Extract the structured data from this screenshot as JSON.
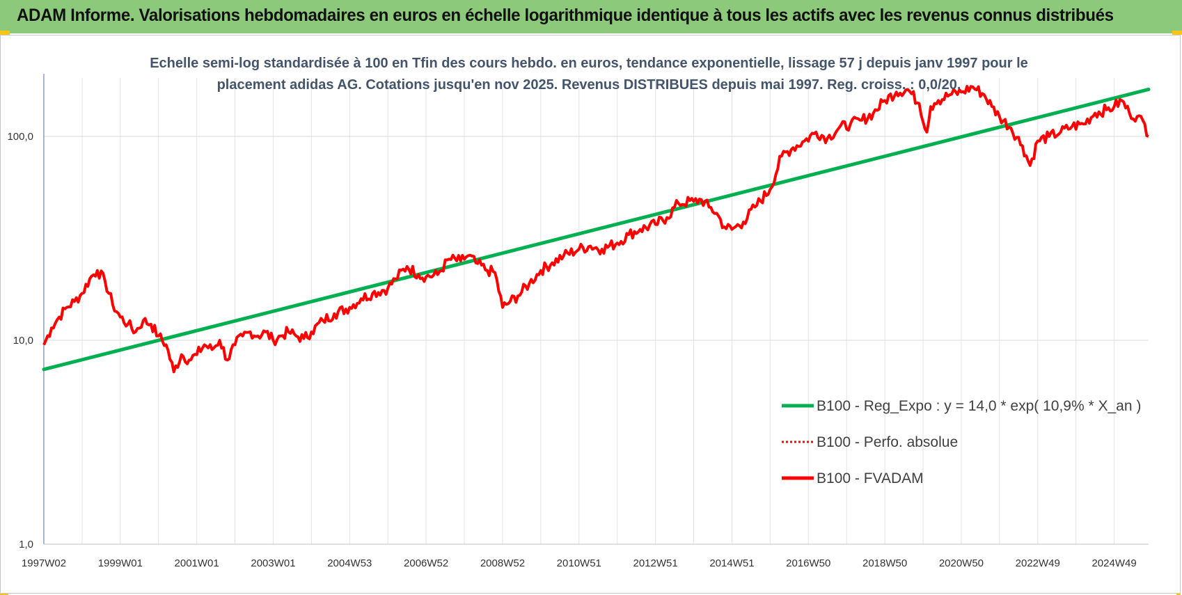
{
  "banner": {
    "title": "ADAM Informe. Valorisations hebdomadaires en euros en échelle logarithmique identique à tous les actifs avec les revenus connus distribués",
    "color": "#8dc97a"
  },
  "chart_data": {
    "type": "line",
    "scale": "log",
    "subtitle_lines": [
      "Echelle semi-log standardisée à 100 en Tfin des cours hebdo. en euros, tendance exponentielle, lissage 57 j depuis janv 1997 pour le",
      "placement adidas AG. Cotations jusqu'en nov 2025. Revenus DISTRIBUES depuis mai 1997. Reg. croiss. : 0,0/20."
    ],
    "x_tick_labels": [
      "1997W02",
      "1999W01",
      "2001W01",
      "2003W01",
      "2004W53",
      "2006W52",
      "2008W52",
      "2010W51",
      "2012W51",
      "2014W51",
      "2016W50",
      "2018W50",
      "2020W50",
      "2022W49",
      "2024W49"
    ],
    "x_tick_years": [
      1997.0,
      1999.0,
      2001.0,
      2003.0,
      2005.0,
      2007.0,
      2009.0,
      2011.0,
      2013.0,
      2015.0,
      2017.0,
      2019.0,
      2021.0,
      2023.0,
      2025.0
    ],
    "x_range_years": [
      1997.0,
      2025.9
    ],
    "y_ticks": [
      1,
      10,
      100
    ],
    "y_tick_labels": [
      "1,0",
      "10,0",
      "100,0"
    ],
    "ylim": [
      1,
      210
    ],
    "grid": true,
    "legend_position": "bottom-right",
    "series": [
      {
        "name": "B100 - Reg_Expo : y = 14,0 * exp( 10,9% *  X_an )",
        "color": "#00b050",
        "style": "solid",
        "x": [
          1997.0,
          2025.9
        ],
        "values": [
          7.2,
          170
        ]
      },
      {
        "name": "B100 - Perfo. absolue",
        "color": "#ff0000",
        "style": "dotted",
        "x": [],
        "values": []
      },
      {
        "name": "B100 - FVADAM",
        "color": "#ff0000",
        "style": "solid",
        "x": [
          1997.0,
          1997.2,
          1997.4,
          1997.6,
          1997.8,
          1998.0,
          1998.2,
          1998.4,
          1998.6,
          1998.8,
          1999.0,
          1999.2,
          1999.4,
          1999.6,
          1999.8,
          2000.0,
          2000.2,
          2000.4,
          2000.6,
          2000.8,
          2001.0,
          2001.2,
          2001.4,
          2001.6,
          2001.8,
          2002.0,
          2002.2,
          2002.4,
          2002.6,
          2002.8,
          2003.0,
          2003.2,
          2003.4,
          2003.6,
          2003.8,
          2004.0,
          2004.3,
          2004.6,
          2005.0,
          2005.3,
          2005.6,
          2006.0,
          2006.2,
          2006.5,
          2006.8,
          2007.0,
          2007.3,
          2007.6,
          2007.9,
          2008.1,
          2008.3,
          2008.6,
          2008.8,
          2009.0,
          2009.2,
          2009.4,
          2009.7,
          2010.0,
          2010.3,
          2010.6,
          2011.0,
          2011.3,
          2011.6,
          2012.0,
          2012.3,
          2012.6,
          2013.0,
          2013.3,
          2013.6,
          2014.0,
          2014.2,
          2014.4,
          2014.6,
          2014.8,
          2015.0,
          2015.3,
          2015.6,
          2016.0,
          2016.3,
          2016.6,
          2016.9,
          2017.2,
          2017.5,
          2017.8,
          2018.1,
          2018.4,
          2018.7,
          2019.0,
          2019.3,
          2019.6,
          2019.9,
          2020.1,
          2020.2,
          2020.3,
          2020.4,
          2020.7,
          2021.0,
          2021.3,
          2021.6,
          2021.8,
          2022.0,
          2022.3,
          2022.6,
          2022.8,
          2023.0,
          2023.3,
          2023.6,
          2023.9,
          2024.2,
          2024.5,
          2024.8,
          2025.0,
          2025.2,
          2025.4,
          2025.6,
          2025.8,
          2025.9
        ],
        "values": [
          9.5,
          11.5,
          13.0,
          14.5,
          15.5,
          17.0,
          20.0,
          22.0,
          19.5,
          15.0,
          13.0,
          12.0,
          11.0,
          12.5,
          12.0,
          10.5,
          9.5,
          7.0,
          8.5,
          8.0,
          8.5,
          9.5,
          9.0,
          10.0,
          8.0,
          9.5,
          10.5,
          11.0,
          10.5,
          11.0,
          10.0,
          10.5,
          11.0,
          10.5,
          10.2,
          11.0,
          12.5,
          13.5,
          14.5,
          16.0,
          17.0,
          18.0,
          20.0,
          23.0,
          21.0,
          20.5,
          21.0,
          25.0,
          24.5,
          26.0,
          24.0,
          22.0,
          21.5,
          14.5,
          15.5,
          16.5,
          19.0,
          22.0,
          24.0,
          26.0,
          28.0,
          29.0,
          28.0,
          30.0,
          33.0,
          35.0,
          37.0,
          40.0,
          47.0,
          48.0,
          49.0,
          45.0,
          42.0,
          36.0,
          35.0,
          38.0,
          45.0,
          55.0,
          80.0,
          88.0,
          95.0,
          105.0,
          98.0,
          110.0,
          115.0,
          120.0,
          130.0,
          150.0,
          165.0,
          170.0,
          145.0,
          105.0,
          140.0,
          145.0,
          150.0,
          160.0,
          165.0,
          175.0,
          160.0,
          140.0,
          125.0,
          110.0,
          90.0,
          72.0,
          95.0,
          100.0,
          105.0,
          112.0,
          115.0,
          130.0,
          135.0,
          140.0,
          150.0,
          130.0,
          125.0,
          115.0,
          100.0
        ]
      }
    ]
  }
}
